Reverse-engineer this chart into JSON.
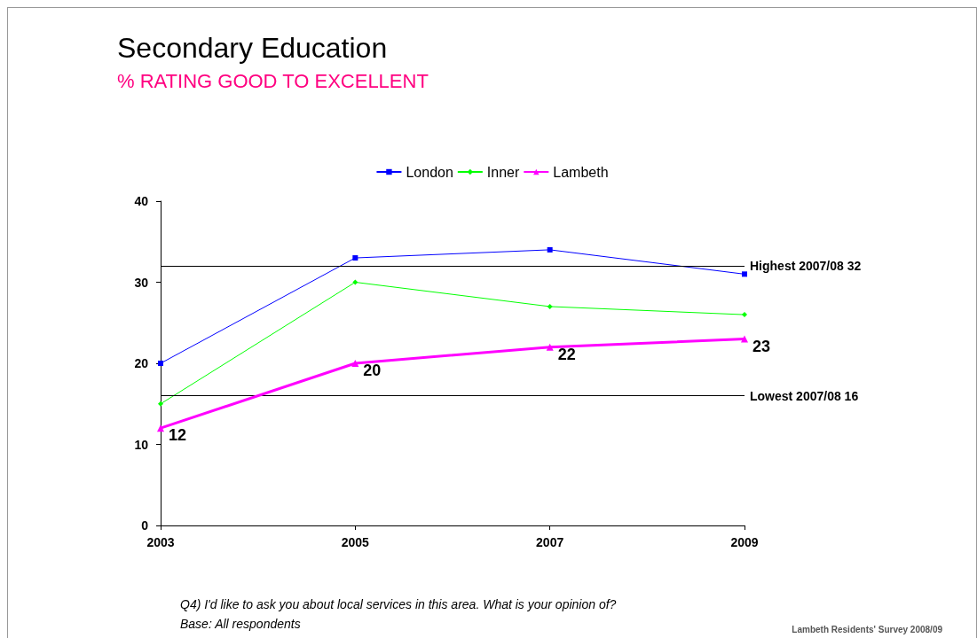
{
  "chart_data": {
    "type": "line",
    "title": "Secondary Education",
    "subtitle": "% RATING GOOD TO EXCELLENT",
    "categories": [
      "2003",
      "2005",
      "2007",
      "2009"
    ],
    "series": [
      {
        "name": "London",
        "color": "#0000ff",
        "marker": "square",
        "values": [
          20,
          33,
          34,
          31
        ]
      },
      {
        "name": "Inner",
        "color": "#00ff00",
        "marker": "diamond",
        "values": [
          15,
          30,
          27,
          26
        ]
      },
      {
        "name": "Lambeth",
        "color": "#ff00ff",
        "marker": "triangle",
        "values": [
          12,
          20,
          22,
          23
        ],
        "value_labels": [
          "12",
          "20",
          "22",
          "23"
        ]
      }
    ],
    "ylim": [
      0,
      40
    ],
    "yticks": [
      0,
      10,
      20,
      30,
      40
    ],
    "grid": false,
    "legend": "top",
    "ref_lines": [
      {
        "axis": "y",
        "value": 32,
        "label": "Highest 2007/08 32",
        "color": "#000000"
      },
      {
        "axis": "y",
        "value": 16,
        "label": "Lowest 2007/08 16",
        "color": "#000000"
      }
    ],
    "annotations": [
      "Q4) I'd like to ask you about local services in this area. What is your opinion of?",
      "Base: All respondents",
      "Lambeth Residents' Survey 2008/09"
    ]
  }
}
